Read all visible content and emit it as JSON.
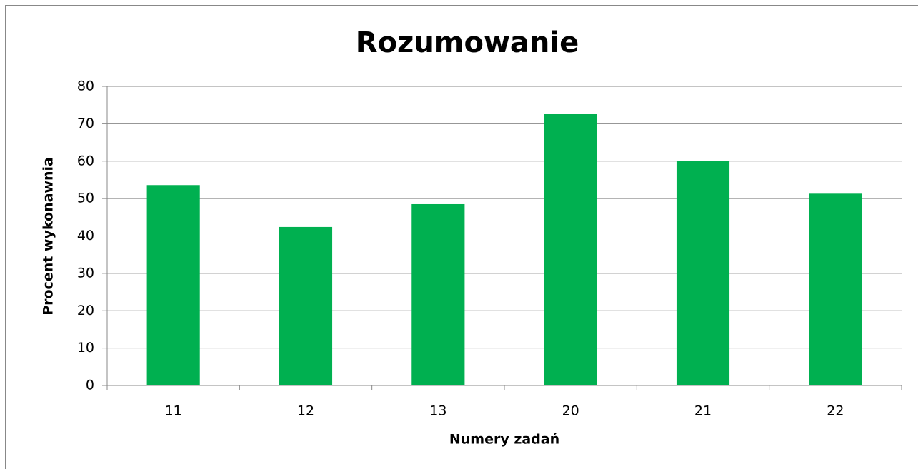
{
  "chart_data": {
    "type": "bar",
    "title": "Rozumowanie",
    "x_label": "Numery zadań",
    "y_label": "Procent wykonawnia",
    "categories": [
      "11",
      "12",
      "13",
      "20",
      "21",
      "22"
    ],
    "values": [
      53.6,
      42.4,
      48.5,
      72.7,
      60.1,
      51.3
    ],
    "color": "#00b050",
    "ylim": [
      0,
      80
    ],
    "yticks": [
      0,
      10,
      20,
      30,
      40,
      50,
      60,
      70,
      80
    ],
    "grid": true
  }
}
